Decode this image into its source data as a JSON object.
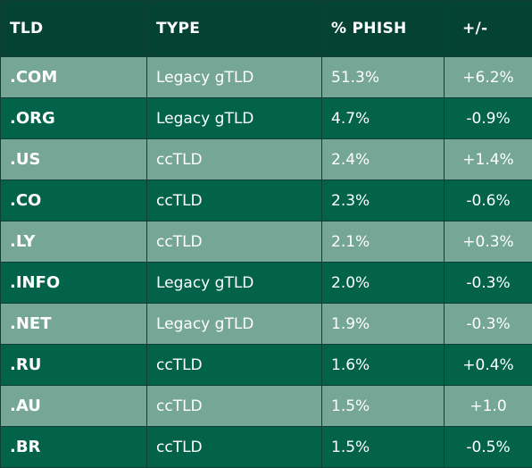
{
  "chart_data": {
    "type": "table",
    "columns": [
      "TLD",
      "TYPE",
      "% PHISH",
      "+/-"
    ],
    "rows": [
      {
        "tld": ".COM",
        "type": "Legacy gTLD",
        "phish": "51.3%",
        "change": "+6.2%"
      },
      {
        "tld": ".ORG",
        "type": "Legacy gTLD",
        "phish": "4.7%",
        "change": "-0.9%"
      },
      {
        "tld": ".US",
        "type": "ccTLD",
        "phish": "2.4%",
        "change": "+1.4%"
      },
      {
        "tld": ".CO",
        "type": "ccTLD",
        "phish": "2.3%",
        "change": "-0.6%"
      },
      {
        "tld": ".LY",
        "type": "ccTLD",
        "phish": "2.1%",
        "change": "+0.3%"
      },
      {
        "tld": ".INFO",
        "type": "Legacy gTLD",
        "phish": "2.0%",
        "change": "-0.3%"
      },
      {
        "tld": ".NET",
        "type": "Legacy gTLD",
        "phish": "1.9%",
        "change": "-0.3%"
      },
      {
        "tld": ".RU",
        "type": "ccTLD",
        "phish": "1.6%",
        "change": "+0.4%"
      },
      {
        "tld": ".AU",
        "type": "ccTLD",
        "phish": "1.5%",
        "change": "+1.0"
      },
      {
        "tld": ".BR",
        "type": "ccTLD",
        "phish": "1.5%",
        "change": "-0.5%"
      }
    ]
  },
  "colors": {
    "header": "#044234",
    "row_light": "#75a696",
    "row_dark": "#03634a",
    "text": "#ffffff"
  }
}
